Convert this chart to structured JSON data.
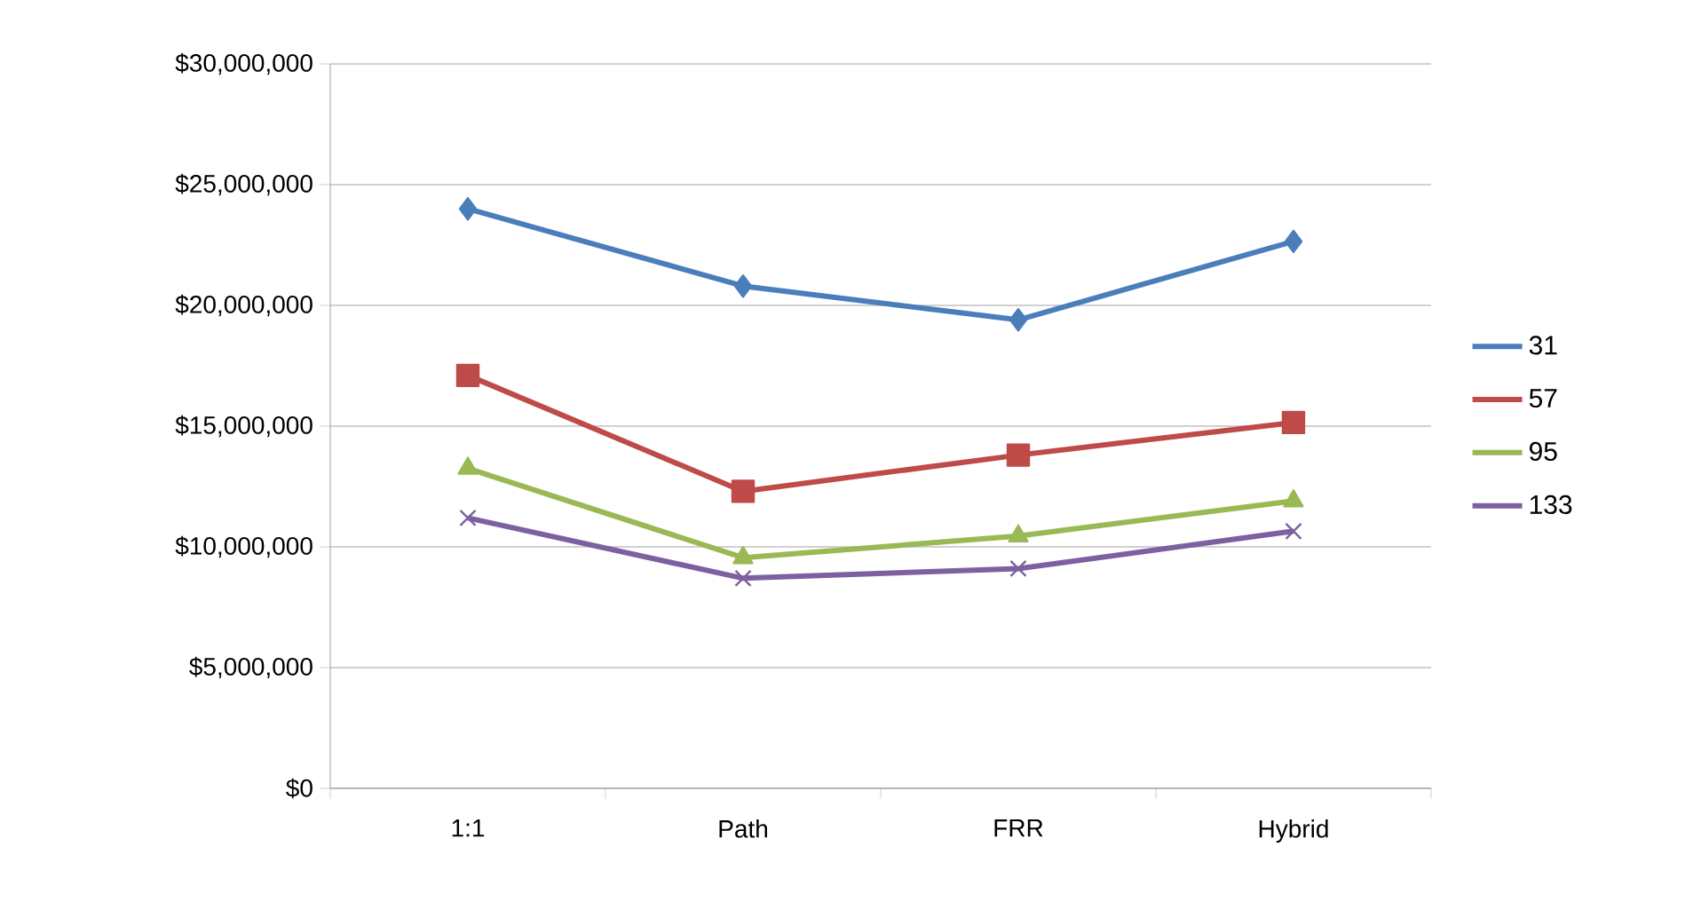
{
  "chart_data": {
    "type": "line",
    "categories": [
      "1:1",
      "Path",
      "FRR",
      "Hybrid"
    ],
    "series": [
      {
        "name": "31",
        "color": "#4a7ebb",
        "marker": "diamond",
        "values": [
          24000000,
          20800000,
          19400000,
          22650000
        ]
      },
      {
        "name": "57",
        "color": "#be4b48",
        "marker": "square",
        "values": [
          17100000,
          12300000,
          13800000,
          15150000
        ]
      },
      {
        "name": "95",
        "color": "#98b954",
        "marker": "triangle",
        "values": [
          13250000,
          9550000,
          10450000,
          11900000
        ]
      },
      {
        "name": "133",
        "color": "#7d60a0",
        "marker": "cross",
        "values": [
          11200000,
          8700000,
          9100000,
          10650000
        ]
      }
    ],
    "ylim": [
      0,
      30000000
    ],
    "yticks": [
      {
        "value": 0,
        "label": "$0"
      },
      {
        "value": 5000000,
        "label": "$5,000,000"
      },
      {
        "value": 10000000,
        "label": "$10,000,000"
      },
      {
        "value": 15000000,
        "label": "$15,000,000"
      },
      {
        "value": 20000000,
        "label": "$20,000,000"
      },
      {
        "value": 25000000,
        "label": "$25,000,000"
      },
      {
        "value": 30000000,
        "label": "$30,000,000"
      }
    ],
    "grid": "y",
    "legend": "right",
    "line_style": "solid"
  }
}
